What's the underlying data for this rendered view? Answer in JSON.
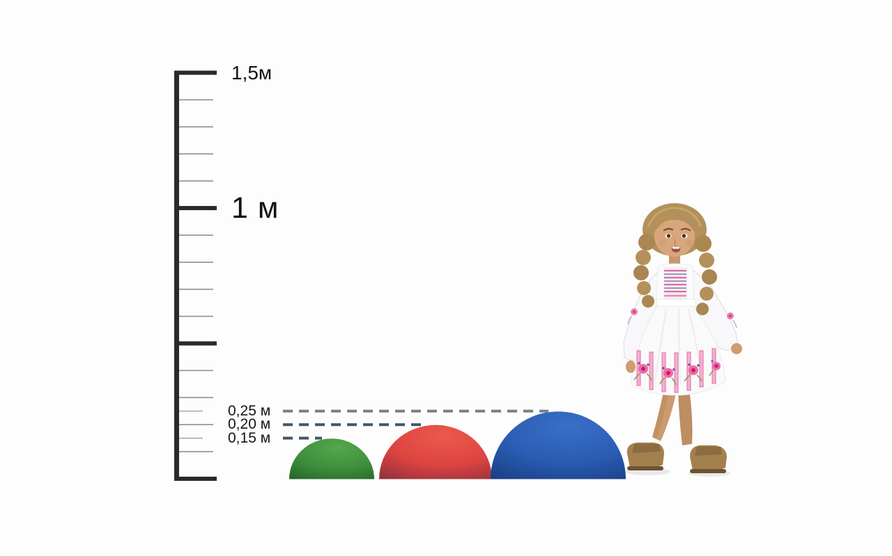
{
  "background_color": "#fdfdfd",
  "scale_ruler": {
    "labels": [
      {
        "text": "1,5м",
        "value_m": 1.5
      },
      {
        "text": "1 м",
        "value_m": 1.0
      }
    ],
    "top_value_m": 1.5,
    "major_tick_values_m": [
      1.5,
      1.0,
      0.5,
      0.0
    ],
    "minor_tick_step_m": 0.1,
    "extra_tick_values_m": [
      0.25,
      0.15
    ],
    "colors": {
      "bar": "#2a2a2a",
      "major": "#2a2a2a",
      "minor": "#8f8f8f",
      "extra": "#a9a9a9"
    }
  },
  "measurements": [
    {
      "label": "0,25 м",
      "value_m": 0.25,
      "guide_color": "#76828c"
    },
    {
      "label": "0,20 м",
      "value_m": 0.2,
      "guide_color": "#42556a"
    },
    {
      "label": "0,15 м",
      "value_m": 0.15,
      "guide_color": "#42556a"
    }
  ],
  "balls": [
    {
      "name": "green-ball",
      "height_m": 0.15,
      "colors": {
        "light": "#55a74c",
        "main": "#3e8f3c",
        "dark": "#27642a"
      }
    },
    {
      "name": "red-ball",
      "height_m": 0.2,
      "colors": {
        "light": "#ea5a4c",
        "main": "#dd4340",
        "dark": "#8f323e"
      }
    },
    {
      "name": "blue-ball",
      "height_m": 0.25,
      "colors": {
        "light": "#3a70c6",
        "main": "#2a5cb2",
        "dark": "#1a3f85"
      }
    }
  ],
  "figure": {
    "name": "child-girl-for-scale"
  }
}
